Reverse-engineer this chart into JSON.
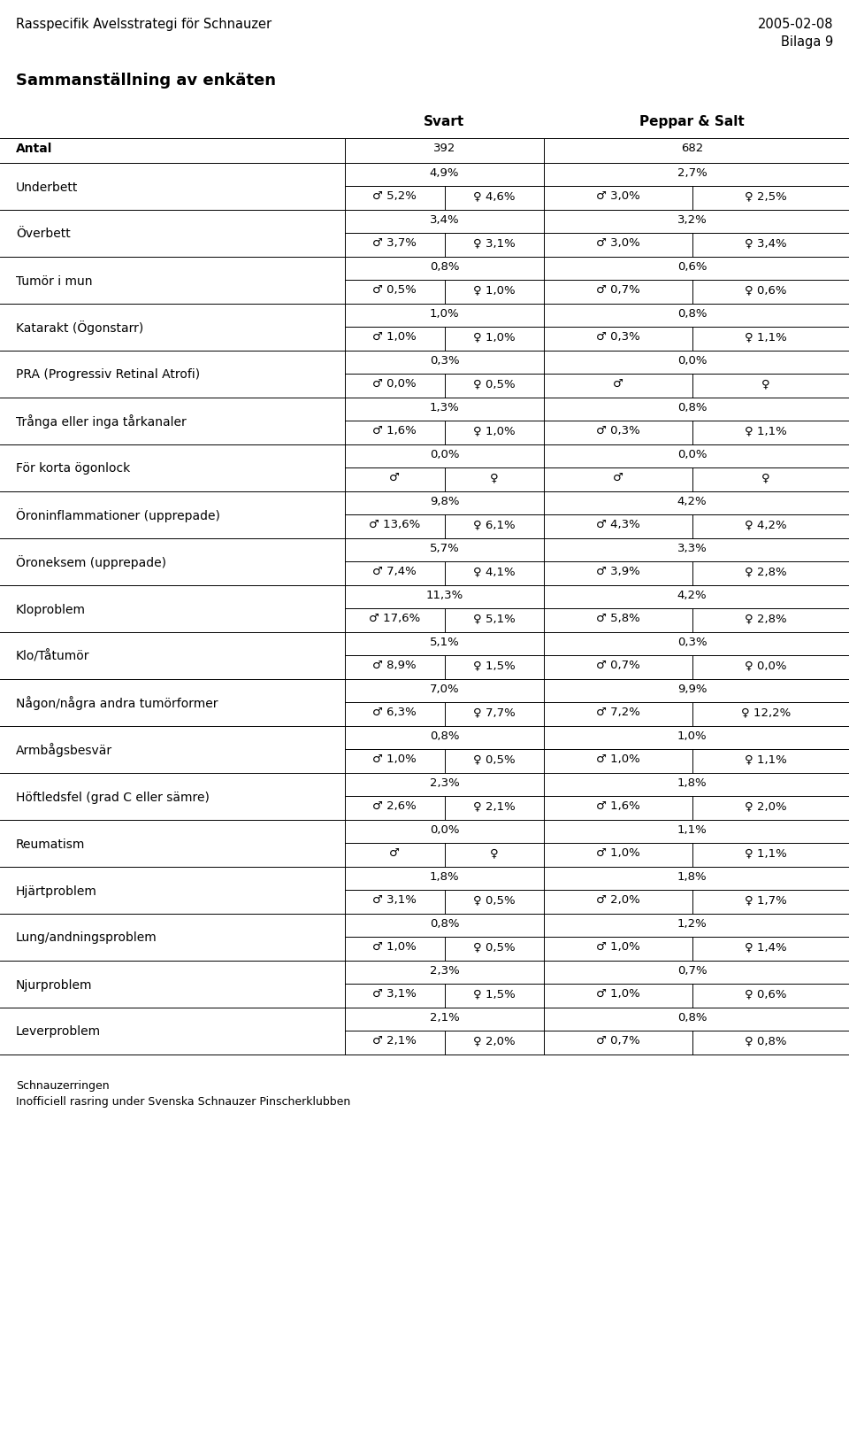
{
  "header_left": "Rasspecifik Avelsstrategi för Schnauzer",
  "header_right_line1": "2005-02-08",
  "header_right_line2": "Bilaga 9",
  "title": "Sammanställning av enkäten",
  "col_headers": [
    "Svart",
    "Peppar & Salt"
  ],
  "antal_row": [
    "Antal",
    "392",
    "682"
  ],
  "rows": [
    {
      "label": "Underbett",
      "svart_total": "4,9%",
      "svart_m": "♂ 5,2%",
      "svart_f": "♀ 4,6%",
      "peppar_total": "2,7%",
      "peppar_m": "♂ 3,0%",
      "peppar_f": "♀ 2,5%"
    },
    {
      "label": "Överbett",
      "svart_total": "3,4%",
      "svart_m": "♂ 3,7%",
      "svart_f": "♀ 3,1%",
      "peppar_total": "3,2%",
      "peppar_m": "♂ 3,0%",
      "peppar_f": "♀ 3,4%"
    },
    {
      "label": "Tumör i mun",
      "svart_total": "0,8%",
      "svart_m": "♂ 0,5%",
      "svart_f": "♀ 1,0%",
      "peppar_total": "0,6%",
      "peppar_m": "♂ 0,7%",
      "peppar_f": "♀ 0,6%"
    },
    {
      "label": "Katarakt (Ögonstarr)",
      "svart_total": "1,0%",
      "svart_m": "♂ 1,0%",
      "svart_f": "♀ 1,0%",
      "peppar_total": "0,8%",
      "peppar_m": "♂ 0,3%",
      "peppar_f": "♀ 1,1%"
    },
    {
      "label": "PRA (Progressiv Retinal Atrofi)",
      "svart_total": "0,3%",
      "svart_m": "♂ 0,0%",
      "svart_f": "♀ 0,5%",
      "peppar_total": "0,0%",
      "peppar_m": "♂",
      "peppar_f": "♀"
    },
    {
      "label": "Trånga eller inga tårkanaler",
      "svart_total": "1,3%",
      "svart_m": "♂ 1,6%",
      "svart_f": "♀ 1,0%",
      "peppar_total": "0,8%",
      "peppar_m": "♂ 0,3%",
      "peppar_f": "♀ 1,1%"
    },
    {
      "label": "För korta ögonlock",
      "svart_total": "0,0%",
      "svart_m": "♂",
      "svart_f": "♀",
      "peppar_total": "0,0%",
      "peppar_m": "♂",
      "peppar_f": "♀"
    },
    {
      "label": "Öroninflammationer (upprepade)",
      "svart_total": "9,8%",
      "svart_m": "♂ 13,6%",
      "svart_f": "♀ 6,1%",
      "peppar_total": "4,2%",
      "peppar_m": "♂ 4,3%",
      "peppar_f": "♀ 4,2%"
    },
    {
      "label": "Öroneksem (upprepade)",
      "svart_total": "5,7%",
      "svart_m": "♂ 7,4%",
      "svart_f": "♀ 4,1%",
      "peppar_total": "3,3%",
      "peppar_m": "♂ 3,9%",
      "peppar_f": "♀ 2,8%"
    },
    {
      "label": "Kloproblem",
      "svart_total": "11,3%",
      "svart_m": "♂ 17,6%",
      "svart_f": "♀ 5,1%",
      "peppar_total": "4,2%",
      "peppar_m": "♂ 5,8%",
      "peppar_f": "♀ 2,8%"
    },
    {
      "label": "Klo/Tåtumör",
      "svart_total": "5,1%",
      "svart_m": "♂ 8,9%",
      "svart_f": "♀ 1,5%",
      "peppar_total": "0,3%",
      "peppar_m": "♂ 0,7%",
      "peppar_f": "♀ 0,0%"
    },
    {
      "label": "Någon/några andra tumörformer",
      "svart_total": "7,0%",
      "svart_m": "♂ 6,3%",
      "svart_f": "♀ 7,7%",
      "peppar_total": "9,9%",
      "peppar_m": "♂ 7,2%",
      "peppar_f": "♀ 12,2%"
    },
    {
      "label": "Armbågsbesvär",
      "svart_total": "0,8%",
      "svart_m": "♂ 1,0%",
      "svart_f": "♀ 0,5%",
      "peppar_total": "1,0%",
      "peppar_m": "♂ 1,0%",
      "peppar_f": "♀ 1,1%"
    },
    {
      "label": "Höftledsfel (grad C eller sämre)",
      "svart_total": "2,3%",
      "svart_m": "♂ 2,6%",
      "svart_f": "♀ 2,1%",
      "peppar_total": "1,8%",
      "peppar_m": "♂ 1,6%",
      "peppar_f": "♀ 2,0%"
    },
    {
      "label": "Reumatism",
      "svart_total": "0,0%",
      "svart_m": "♂",
      "svart_f": "♀",
      "peppar_total": "1,1%",
      "peppar_m": "♂ 1,0%",
      "peppar_f": "♀ 1,1%"
    },
    {
      "label": "Hjärtproblem",
      "svart_total": "1,8%",
      "svart_m": "♂ 3,1%",
      "svart_f": "♀ 0,5%",
      "peppar_total": "1,8%",
      "peppar_m": "♂ 2,0%",
      "peppar_f": "♀ 1,7%"
    },
    {
      "label": "Lung/andningsproblem",
      "svart_total": "0,8%",
      "svart_m": "♂ 1,0%",
      "svart_f": "♀ 0,5%",
      "peppar_total": "1,2%",
      "peppar_m": "♂ 1,0%",
      "peppar_f": "♀ 1,4%"
    },
    {
      "label": "Njurproblem",
      "svart_total": "2,3%",
      "svart_m": "♂ 3,1%",
      "svart_f": "♀ 1,5%",
      "peppar_total": "0,7%",
      "peppar_m": "♂ 1,0%",
      "peppar_f": "♀ 0,6%"
    },
    {
      "label": "Leverproblem",
      "svart_total": "2,1%",
      "svart_m": "♂ 2,1%",
      "svart_f": "♀ 2,0%",
      "peppar_total": "0,8%",
      "peppar_m": "♂ 0,7%",
      "peppar_f": "♀ 0,8%"
    }
  ],
  "footer_line1": "Schnauzerringen",
  "footer_line2": "Inofficiell rasring under Svenska Schnauzer Pinscherklubben",
  "bg_color": "#ffffff",
  "text_color": "#000000",
  "line_color": "#000000",
  "fig_width": 9.6,
  "fig_height": 16.24,
  "dpi": 100
}
